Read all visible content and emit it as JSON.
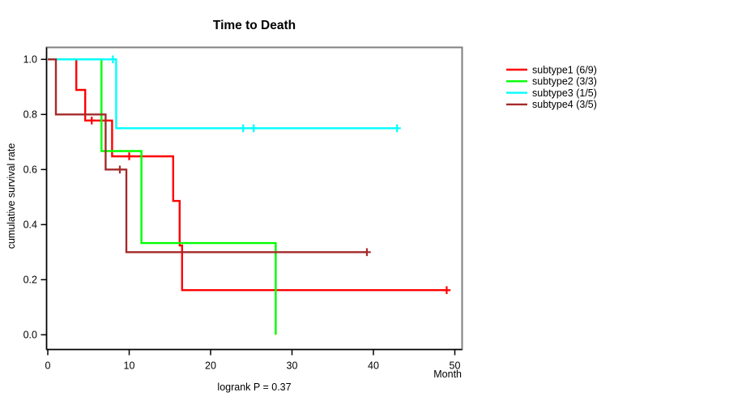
{
  "title": "Time to Death",
  "footnote": "logrank P = 0.37",
  "x_axis": {
    "label": "Month",
    "tick_labels": [
      "0",
      "10",
      "20",
      "30",
      "40",
      "50"
    ],
    "range": [
      0,
      50
    ]
  },
  "y_axis": {
    "label": "cumulative survival rate",
    "tick_labels": [
      "1.0",
      "0.8",
      "0.6",
      "0.4",
      "0.2",
      "0.0"
    ],
    "range": [
      0,
      1
    ]
  },
  "colors": {
    "frame": "#7f7f7f",
    "axis": "#000000",
    "subtype1": "#ff0000",
    "subtype2": "#00ff00",
    "subtype3": "#00ffff",
    "subtype4": "#a52a2a"
  },
  "legend": {
    "position": "right-outside",
    "entries": [
      "subtype1 (6/9)",
      "subtype2 (3/3)",
      "subtype3 (1/5)",
      "subtype4 (3/5)"
    ]
  },
  "chart_data": {
    "type": "line",
    "variant": "kaplan-meier-step",
    "title": "Time to Death",
    "xlabel": "Month",
    "ylabel": "cumulative survival rate",
    "xlim": [
      0,
      50
    ],
    "ylim": [
      0.0,
      1.0
    ],
    "x_ticks": [
      0,
      10,
      20,
      30,
      40,
      50
    ],
    "y_ticks": [
      1.0,
      0.8,
      0.6,
      0.4,
      0.2,
      0.0
    ],
    "grid": false,
    "legend_position": "right-outside",
    "annotation": "logrank P = 0.37",
    "series": [
      {
        "name": "subtype1 (6/9)",
        "color": "#ff0000",
        "steps": [
          [
            0,
            1.0
          ],
          [
            3.5,
            0.889
          ],
          [
            4.6,
            0.778
          ],
          [
            7.9,
            0.648
          ],
          [
            15.4,
            0.486
          ],
          [
            16.2,
            0.324
          ],
          [
            16.5,
            0.162
          ],
          [
            49.0,
            0.162
          ]
        ],
        "censor_marks": [
          [
            5.4,
            0.778
          ],
          [
            10.0,
            0.648
          ],
          [
            49.0,
            0.162
          ]
        ]
      },
      {
        "name": "subtype2 (3/3)",
        "color": "#00ff00",
        "steps": [
          [
            0,
            1.0
          ],
          [
            6.6,
            0.667
          ],
          [
            11.5,
            0.333
          ],
          [
            28.0,
            0.0
          ]
        ],
        "censor_marks": []
      },
      {
        "name": "subtype3 (1/5)",
        "color": "#00ffff",
        "steps": [
          [
            0,
            1.0
          ],
          [
            8.4,
            0.75
          ],
          [
            42.9,
            0.75
          ]
        ],
        "censor_marks": [
          [
            8.0,
            1.0
          ],
          [
            24.0,
            0.75
          ],
          [
            25.3,
            0.75
          ],
          [
            42.9,
            0.75
          ]
        ]
      },
      {
        "name": "subtype4 (3/5)",
        "color": "#a52a2a",
        "steps": [
          [
            0,
            1.0
          ],
          [
            1.0,
            0.8
          ],
          [
            7.1,
            0.6
          ],
          [
            9.65,
            0.3
          ],
          [
            39.2,
            0.3
          ]
        ],
        "censor_marks": [
          [
            8.85,
            0.6
          ],
          [
            39.2,
            0.3
          ]
        ]
      }
    ]
  }
}
